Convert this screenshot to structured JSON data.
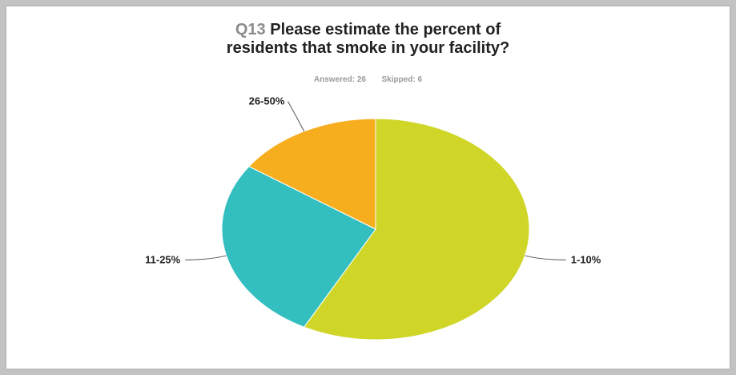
{
  "title": {
    "question_number": "Q13",
    "line1_rest": "Please estimate the percent of",
    "line2": "residents that smoke in your facility?"
  },
  "stats": {
    "answered_label": "Answered:",
    "answered_value": "26",
    "skipped_label": "Skipped:",
    "skipped_value": "6"
  },
  "chart_data": {
    "type": "pie",
    "title": "Q13 Please estimate the percent of residents that smoke in your facility?",
    "categories": [
      "1-10%",
      "11-25%",
      "26-50%"
    ],
    "values": [
      57.7,
      26.9,
      15.4
    ],
    "colors": [
      "#cfd628",
      "#33bec0",
      "#f7ae1e"
    ],
    "legend": "none (callout labels)"
  }
}
